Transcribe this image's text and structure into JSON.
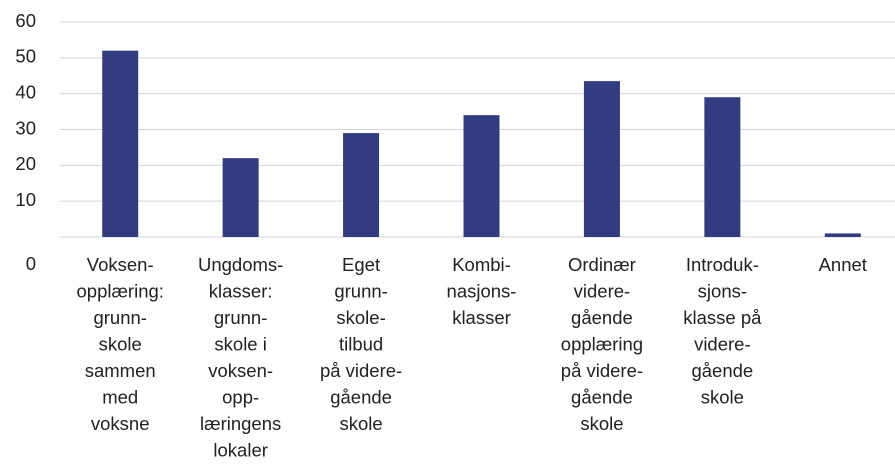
{
  "chart_data": {
    "type": "bar",
    "categories": [
      [
        "Voksen-",
        "opplæring:",
        "grunn-",
        "skole",
        "sammen",
        "med",
        "voksne"
      ],
      [
        "Ungdoms-",
        "klasser:",
        "grunn-",
        "skole i",
        "voksen-",
        "opp-",
        "læringens",
        "lokaler"
      ],
      [
        "Eget",
        "grunn-",
        "skole-",
        "tilbud",
        "på videre-",
        "gående",
        "skole"
      ],
      [
        "Kombi-",
        "nasjons-",
        "klasser"
      ],
      [
        "Ordinær",
        "videre-",
        "gående",
        "opplæring",
        "på videre-",
        "gående",
        "skole"
      ],
      [
        "Introduk-",
        "sjons-",
        "klasse på",
        "videre-",
        "gående",
        "skole"
      ],
      [
        "Annet"
      ]
    ],
    "values": [
      52,
      22,
      29,
      34,
      43.5,
      39,
      1
    ],
    "color": "#333c80",
    "ylim": [
      0,
      60
    ],
    "yticks": [
      0,
      10,
      20,
      30,
      40,
      50,
      60
    ],
    "grid": true
  }
}
